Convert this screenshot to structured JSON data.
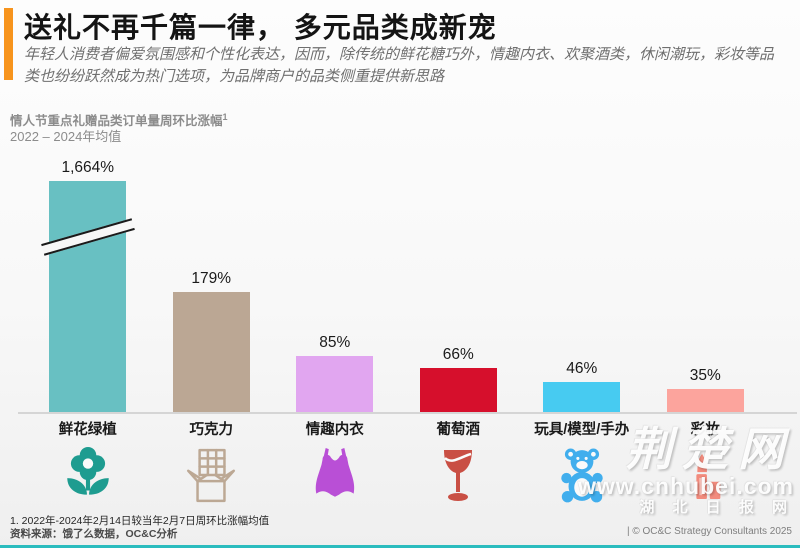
{
  "header": {
    "accent_color": "#F7941D",
    "title": "送礼不再千篇一律， 多元品类成新宠",
    "subtitle": "年轻人消费者偏爱氛围感和个性化表达，因而，除传统的鲜花糖巧外，情趣内衣、欢聚酒类，休闲潮玩，彩妆等品类也纷纷跃然成为热门选项，为品牌商户的品类侧重提供新思路"
  },
  "chart": {
    "title": "情人节重点礼赠品类订单量周环比涨幅",
    "title_superscript": "1",
    "subtitle": "2022 – 2024年均值"
  },
  "chart_data": {
    "type": "bar",
    "title": "情人节重点礼赠品类订单量周环比涨幅¹",
    "subtitle": "2022 – 2024年均值",
    "unit": "%",
    "categories": [
      "鲜花绿植",
      "巧克力",
      "情趣内衣",
      "葡萄酒",
      "玩具/模型/手办",
      "彩妆"
    ],
    "values": [
      1664,
      179,
      85,
      66,
      46,
      35
    ],
    "value_labels": [
      "1,664%",
      "179%",
      "85%",
      "66%",
      "46%",
      "35%"
    ],
    "bar_colors": [
      "#68C0C2",
      "#BBA794",
      "#E1A6F0",
      "#D60F2C",
      "#47CBF1",
      "#FCA49D"
    ],
    "icons": [
      "flower-icon",
      "chocolate-bar-icon",
      "lingerie-icon",
      "wine-glass-icon",
      "teddy-bear-icon",
      "lipstick-icon"
    ],
    "icon_colors": [
      "#1E9C90",
      "#BCA894",
      "#B94FD6",
      "#C94F44",
      "#41AEED",
      "#F28B7D"
    ],
    "axis_break": {
      "bar_index": 0,
      "truncated": true
    },
    "grid": false,
    "legend": false
  },
  "watermark": {
    "logo_text": "荆楚网",
    "url": "www.cnhubei.com",
    "caption": "湖 北 日 报 网"
  },
  "footer": {
    "footnote": "1. 2022年-2024年2月14日较当年2月7日周环比涨幅均值",
    "source": "资料来源：饿了么数据，OC&C分析",
    "copyright": "| © OC&C Strategy Consultants 2025",
    "bottom_line_color": "#2BBCBE"
  }
}
